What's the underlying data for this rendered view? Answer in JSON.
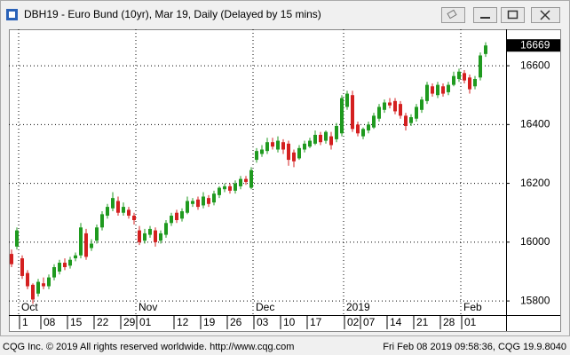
{
  "chart_data": {
    "type": "candlestick",
    "title": "DBH19 - Euro Bund (10yr), Mar 19, Daily (Delayed by 15 mins)",
    "categories": [
      null,
      null,
      "1",
      null,
      null,
      null,
      "08",
      null,
      null,
      null,
      null,
      "15",
      null,
      null,
      null,
      null,
      "22",
      null,
      null,
      null,
      null,
      "29",
      null,
      null,
      "01",
      null,
      null,
      null,
      null,
      null,
      null,
      "12",
      null,
      null,
      null,
      null,
      "19",
      null,
      null,
      null,
      null,
      "26",
      null,
      null,
      null,
      null,
      "03",
      null,
      null,
      null,
      null,
      "10",
      null,
      null,
      null,
      null,
      "17",
      null,
      null,
      null,
      null,
      null,
      null,
      "02",
      null,
      null,
      "07",
      null,
      null,
      null,
      null,
      "14",
      null,
      null,
      null,
      null,
      "21",
      null,
      null,
      null,
      null,
      "28",
      null,
      null,
      null,
      "01",
      null,
      null,
      null,
      null
    ],
    "month_labels": [
      null,
      null,
      "Oct",
      null,
      null,
      null,
      null,
      null,
      null,
      null,
      null,
      null,
      null,
      null,
      null,
      null,
      null,
      null,
      null,
      null,
      null,
      null,
      null,
      null,
      "Nov",
      null,
      null,
      null,
      null,
      null,
      null,
      null,
      null,
      null,
      null,
      null,
      null,
      null,
      null,
      null,
      null,
      null,
      null,
      null,
      null,
      null,
      "Dec",
      null,
      null,
      null,
      null,
      null,
      null,
      null,
      null,
      null,
      null,
      null,
      null,
      null,
      null,
      null,
      null,
      "2019",
      null,
      null,
      null,
      null,
      null,
      null,
      null,
      null,
      null,
      null,
      null,
      null,
      null,
      null,
      null,
      null,
      null,
      null,
      null,
      null,
      null,
      "Feb",
      null,
      null,
      null,
      null
    ],
    "open": [
      15960,
      15985,
      15945,
      15895,
      15855,
      15825,
      15860,
      15850,
      15880,
      15900,
      15930,
      15920,
      15945,
      15955,
      16030,
      15980,
      16005,
      16050,
      16090,
      16115,
      16140,
      16100,
      16110,
      16090,
      16040,
      16005,
      16025,
      16040,
      16005,
      16025,
      16065,
      16100,
      16080,
      16100,
      16130,
      16145,
      16125,
      16150,
      16135,
      16160,
      16180,
      16190,
      16175,
      16190,
      16215,
      16185,
      16280,
      16300,
      16310,
      16340,
      16315,
      16340,
      16335,
      16305,
      16285,
      16315,
      16325,
      16335,
      16365,
      16345,
      16360,
      16350,
      16370,
      16460,
      16500,
      16400,
      16360,
      16380,
      16390,
      16420,
      16450,
      16475,
      16480,
      16470,
      16430,
      16405,
      16420,
      16450,
      16480,
      16530,
      16500,
      16530,
      16510,
      16535,
      16555,
      16575,
      16560,
      16530,
      16560,
      16640
    ],
    "high": [
      15975,
      16050,
      15955,
      15905,
      15860,
      15875,
      15880,
      15890,
      15925,
      15940,
      15945,
      15950,
      15965,
      16065,
      16045,
      16010,
      16060,
      16105,
      16130,
      16170,
      16155,
      16135,
      16120,
      16100,
      16055,
      16045,
      16055,
      16050,
      16040,
      16075,
      16100,
      16110,
      16115,
      16155,
      16150,
      16155,
      16170,
      16160,
      16175,
      16190,
      16200,
      16200,
      16210,
      16225,
      16225,
      16255,
      16320,
      16330,
      16355,
      16355,
      16360,
      16350,
      16345,
      16315,
      16330,
      16345,
      16355,
      16380,
      16375,
      16380,
      16375,
      16405,
      16500,
      16515,
      16515,
      16410,
      16390,
      16410,
      16440,
      16470,
      16485,
      16490,
      16490,
      16480,
      16440,
      16435,
      16470,
      16495,
      16545,
      16540,
      16545,
      16540,
      16545,
      16580,
      16590,
      16585,
      16570,
      16565,
      16645,
      16680
    ],
    "low": [
      15915,
      15975,
      15875,
      15840,
      15790,
      15815,
      15840,
      15840,
      15870,
      15890,
      15905,
      15910,
      15935,
      15945,
      15940,
      15970,
      15995,
      16040,
      16080,
      16105,
      16090,
      16090,
      16080,
      16060,
      15990,
      15995,
      16015,
      15985,
      15995,
      16015,
      16055,
      16065,
      16070,
      16095,
      16120,
      16110,
      16115,
      16120,
      16125,
      16150,
      16170,
      16165,
      16165,
      16180,
      16195,
      16180,
      16270,
      16290,
      16300,
      16315,
      16305,
      16300,
      16260,
      16255,
      16280,
      16305,
      16320,
      16330,
      16330,
      16335,
      16315,
      16340,
      16360,
      16450,
      16375,
      16360,
      16350,
      16370,
      16385,
      16410,
      16440,
      16455,
      16435,
      16420,
      16380,
      16395,
      16410,
      16440,
      16470,
      16495,
      16490,
      16495,
      16500,
      16530,
      16545,
      16540,
      16505,
      16520,
      16550,
      16630
    ],
    "close": [
      15925,
      16040,
      15885,
      15850,
      15805,
      15865,
      15850,
      15880,
      15915,
      15930,
      15915,
      15940,
      15955,
      16050,
      15950,
      15995,
      16050,
      16095,
      16120,
      16150,
      16100,
      16120,
      16090,
      16075,
      16000,
      16030,
      16045,
      16000,
      16030,
      16065,
      16090,
      16075,
      16105,
      16140,
      16140,
      16120,
      16155,
      16130,
      16165,
      16185,
      16190,
      16175,
      16200,
      16215,
      16205,
      16245,
      16310,
      16315,
      16340,
      16325,
      16345,
      16315,
      16280,
      16275,
      16320,
      16335,
      16345,
      16365,
      16340,
      16375,
      16330,
      16395,
      16490,
      16505,
      16385,
      16370,
      16385,
      16400,
      16430,
      16460,
      16475,
      16465,
      16445,
      16430,
      16395,
      16425,
      16460,
      16485,
      16535,
      16505,
      16535,
      16505,
      16535,
      16565,
      16580,
      16550,
      16520,
      16555,
      16635,
      16669
    ],
    "up_color": "#1f9a1f",
    "down_color": "#d42020",
    "ylim": [
      15752,
      16724
    ],
    "yticks": [
      15800,
      16000,
      16200,
      16400,
      16600
    ],
    "grid": true
  },
  "footer": {
    "left": "CQG Inc. © 2019 All rights reserved worldwide. http://www.cqg.com",
    "right": "Fri Feb 08 2019 09:58:36, CQG 19.9.8040"
  }
}
